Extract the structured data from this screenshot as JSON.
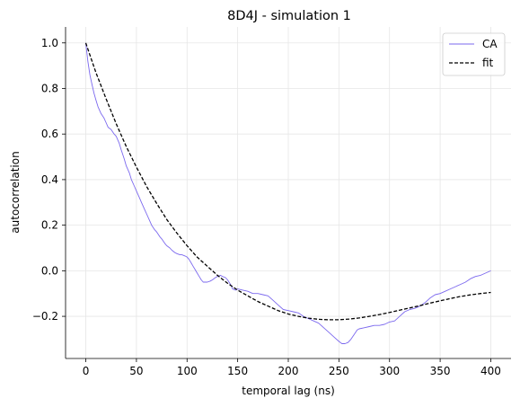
{
  "chart_data": {
    "type": "line",
    "title": "8D4J - simulation 1",
    "xlabel": "temporal lag (ns)",
    "ylabel": "autocorrelation",
    "xlim": [
      -20,
      420
    ],
    "ylim": [
      -0.385,
      1.07
    ],
    "xticks": [
      0,
      50,
      100,
      150,
      200,
      250,
      300,
      350,
      400
    ],
    "xtick_labels": [
      "0",
      "50",
      "100",
      "150",
      "200",
      "250",
      "300",
      "350",
      "400"
    ],
    "yticks": [
      -0.2,
      0.0,
      0.2,
      0.4,
      0.6,
      0.8,
      1.0
    ],
    "ytick_labels": [
      "−0.2",
      "0.0",
      "0.2",
      "0.4",
      "0.6",
      "0.8",
      "1.0"
    ],
    "grid": true,
    "legend": "top-right",
    "series": [
      {
        "name": "CA",
        "style": "solid",
        "color": "#7b68ee",
        "x": [
          0,
          2,
          4,
          6,
          8,
          10,
          12,
          15,
          18,
          20,
          22,
          25,
          28,
          30,
          33,
          35,
          38,
          40,
          43,
          45,
          48,
          50,
          53,
          55,
          58,
          60,
          63,
          65,
          68,
          70,
          73,
          75,
          78,
          80,
          83,
          85,
          88,
          90,
          93,
          95,
          98,
          100,
          102,
          104,
          106,
          108,
          110,
          112,
          114,
          116,
          118,
          120,
          123,
          125,
          128,
          130,
          133,
          135,
          138,
          140,
          143,
          145,
          148,
          150,
          155,
          160,
          165,
          170,
          175,
          180,
          185,
          190,
          195,
          200,
          205,
          210,
          215,
          220,
          225,
          230,
          235,
          240,
          245,
          250,
          253,
          256,
          259,
          262,
          265,
          268,
          270,
          275,
          280,
          285,
          290,
          295,
          300,
          305,
          310,
          315,
          320,
          325,
          330,
          335,
          340,
          345,
          350,
          355,
          360,
          365,
          370,
          375,
          380,
          385,
          390,
          395,
          400
        ],
        "values": [
          1.0,
          0.92,
          0.86,
          0.82,
          0.78,
          0.75,
          0.72,
          0.69,
          0.67,
          0.65,
          0.63,
          0.62,
          0.6,
          0.59,
          0.56,
          0.53,
          0.49,
          0.46,
          0.43,
          0.4,
          0.37,
          0.35,
          0.32,
          0.3,
          0.27,
          0.25,
          0.22,
          0.2,
          0.18,
          0.17,
          0.15,
          0.14,
          0.12,
          0.11,
          0.1,
          0.09,
          0.08,
          0.075,
          0.07,
          0.07,
          0.065,
          0.06,
          0.05,
          0.035,
          0.02,
          0.005,
          -0.01,
          -0.025,
          -0.04,
          -0.05,
          -0.05,
          -0.05,
          -0.045,
          -0.04,
          -0.03,
          -0.025,
          -0.02,
          -0.025,
          -0.03,
          -0.04,
          -0.06,
          -0.08,
          -0.085,
          -0.08,
          -0.085,
          -0.09,
          -0.1,
          -0.1,
          -0.105,
          -0.11,
          -0.13,
          -0.15,
          -0.17,
          -0.175,
          -0.18,
          -0.185,
          -0.2,
          -0.21,
          -0.22,
          -0.23,
          -0.25,
          -0.27,
          -0.29,
          -0.31,
          -0.32,
          -0.32,
          -0.315,
          -0.3,
          -0.28,
          -0.26,
          -0.255,
          -0.25,
          -0.245,
          -0.24,
          -0.24,
          -0.235,
          -0.225,
          -0.22,
          -0.2,
          -0.18,
          -0.17,
          -0.165,
          -0.155,
          -0.14,
          -0.12,
          -0.105,
          -0.1,
          -0.09,
          -0.08,
          -0.07,
          -0.06,
          -0.05,
          -0.035,
          -0.025,
          -0.02,
          -0.01,
          0.0
        ]
      },
      {
        "name": "fit",
        "style": "dashed",
        "color": "#000000",
        "x": [
          0,
          10,
          20,
          30,
          40,
          50,
          60,
          70,
          80,
          90,
          100,
          110,
          120,
          130,
          140,
          150,
          160,
          170,
          180,
          190,
          200,
          210,
          220,
          230,
          240,
          250,
          260,
          270,
          280,
          290,
          300,
          310,
          320,
          330,
          340,
          350,
          360,
          370,
          380,
          390,
          400
        ],
        "values": [
          1.0,
          0.87,
          0.755,
          0.645,
          0.545,
          0.455,
          0.37,
          0.295,
          0.225,
          0.165,
          0.11,
          0.06,
          0.02,
          -0.02,
          -0.055,
          -0.085,
          -0.11,
          -0.135,
          -0.155,
          -0.175,
          -0.19,
          -0.2,
          -0.208,
          -0.213,
          -0.215,
          -0.215,
          -0.212,
          -0.207,
          -0.2,
          -0.192,
          -0.183,
          -0.173,
          -0.163,
          -0.153,
          -0.142,
          -0.132,
          -0.122,
          -0.113,
          -0.106,
          -0.1,
          -0.095
        ]
      }
    ]
  }
}
